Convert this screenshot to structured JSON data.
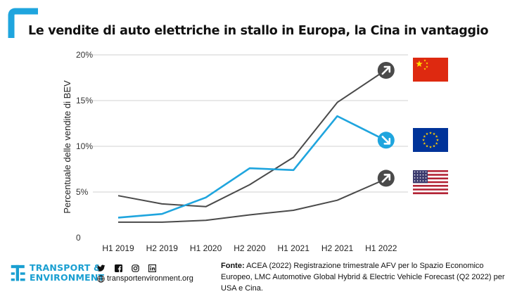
{
  "title": "Le vendite di auto elettriche in stallo in Europa, la Cina in vantaggio",
  "colors": {
    "accent_blue": "#1fa5de",
    "grey_line": "#4a4a4a",
    "china_red": "#de2910",
    "eu_blue": "#003399",
    "usa_red": "#b22234"
  },
  "chart_data": {
    "type": "line",
    "categories": [
      "H1 2019",
      "H2 2019",
      "H1 2020",
      "H2 2020",
      "H1 2021",
      "H2 2021",
      "H1 2022"
    ],
    "ylabel": "Percentuale delle vendite di BEV",
    "xlabel": "",
    "ylim": [
      0,
      20
    ],
    "yticks": [
      {
        "value": 0,
        "label": "0"
      },
      {
        "value": 5,
        "label": "5%"
      },
      {
        "value": 10,
        "label": "10%"
      },
      {
        "value": 15,
        "label": "15%"
      },
      {
        "value": 20,
        "label": "20%"
      }
    ],
    "grid": true,
    "series": [
      {
        "id": "china",
        "flag": "china-flag",
        "color": "#4a4a4a",
        "arrow": "up-right-arrow-icon",
        "values": [
          4.6,
          3.7,
          3.4,
          5.8,
          8.8,
          14.8,
          18.0
        ]
      },
      {
        "id": "europe",
        "flag": "eu-flag",
        "color": "#1fa5de",
        "arrow": "down-right-arrow-icon",
        "values": [
          2.2,
          2.6,
          4.4,
          7.6,
          7.4,
          13.3,
          10.9
        ]
      },
      {
        "id": "usa",
        "flag": "usa-flag",
        "color": "#4a4a4a",
        "arrow": "up-right-arrow-icon",
        "values": [
          1.7,
          1.7,
          1.9,
          2.5,
          3.0,
          4.1,
          6.2
        ]
      }
    ]
  },
  "footer": {
    "brand_line1": "TRANSPORT &",
    "brand_line2": "ENVIRONMENT",
    "website": "transportenvironment.org",
    "social_icons": [
      "twitter-icon",
      "facebook-icon",
      "instagram-icon",
      "linkedin-icon"
    ],
    "source_label": "Fonte:",
    "source_text": "ACEA (2022) Registrazione trimestrale AFV per lo Spazio Economico Europeo, LMC Automotive Global Hybrid & Electric Vehicle Forecast (Q2 2022) per USA e Cina."
  }
}
